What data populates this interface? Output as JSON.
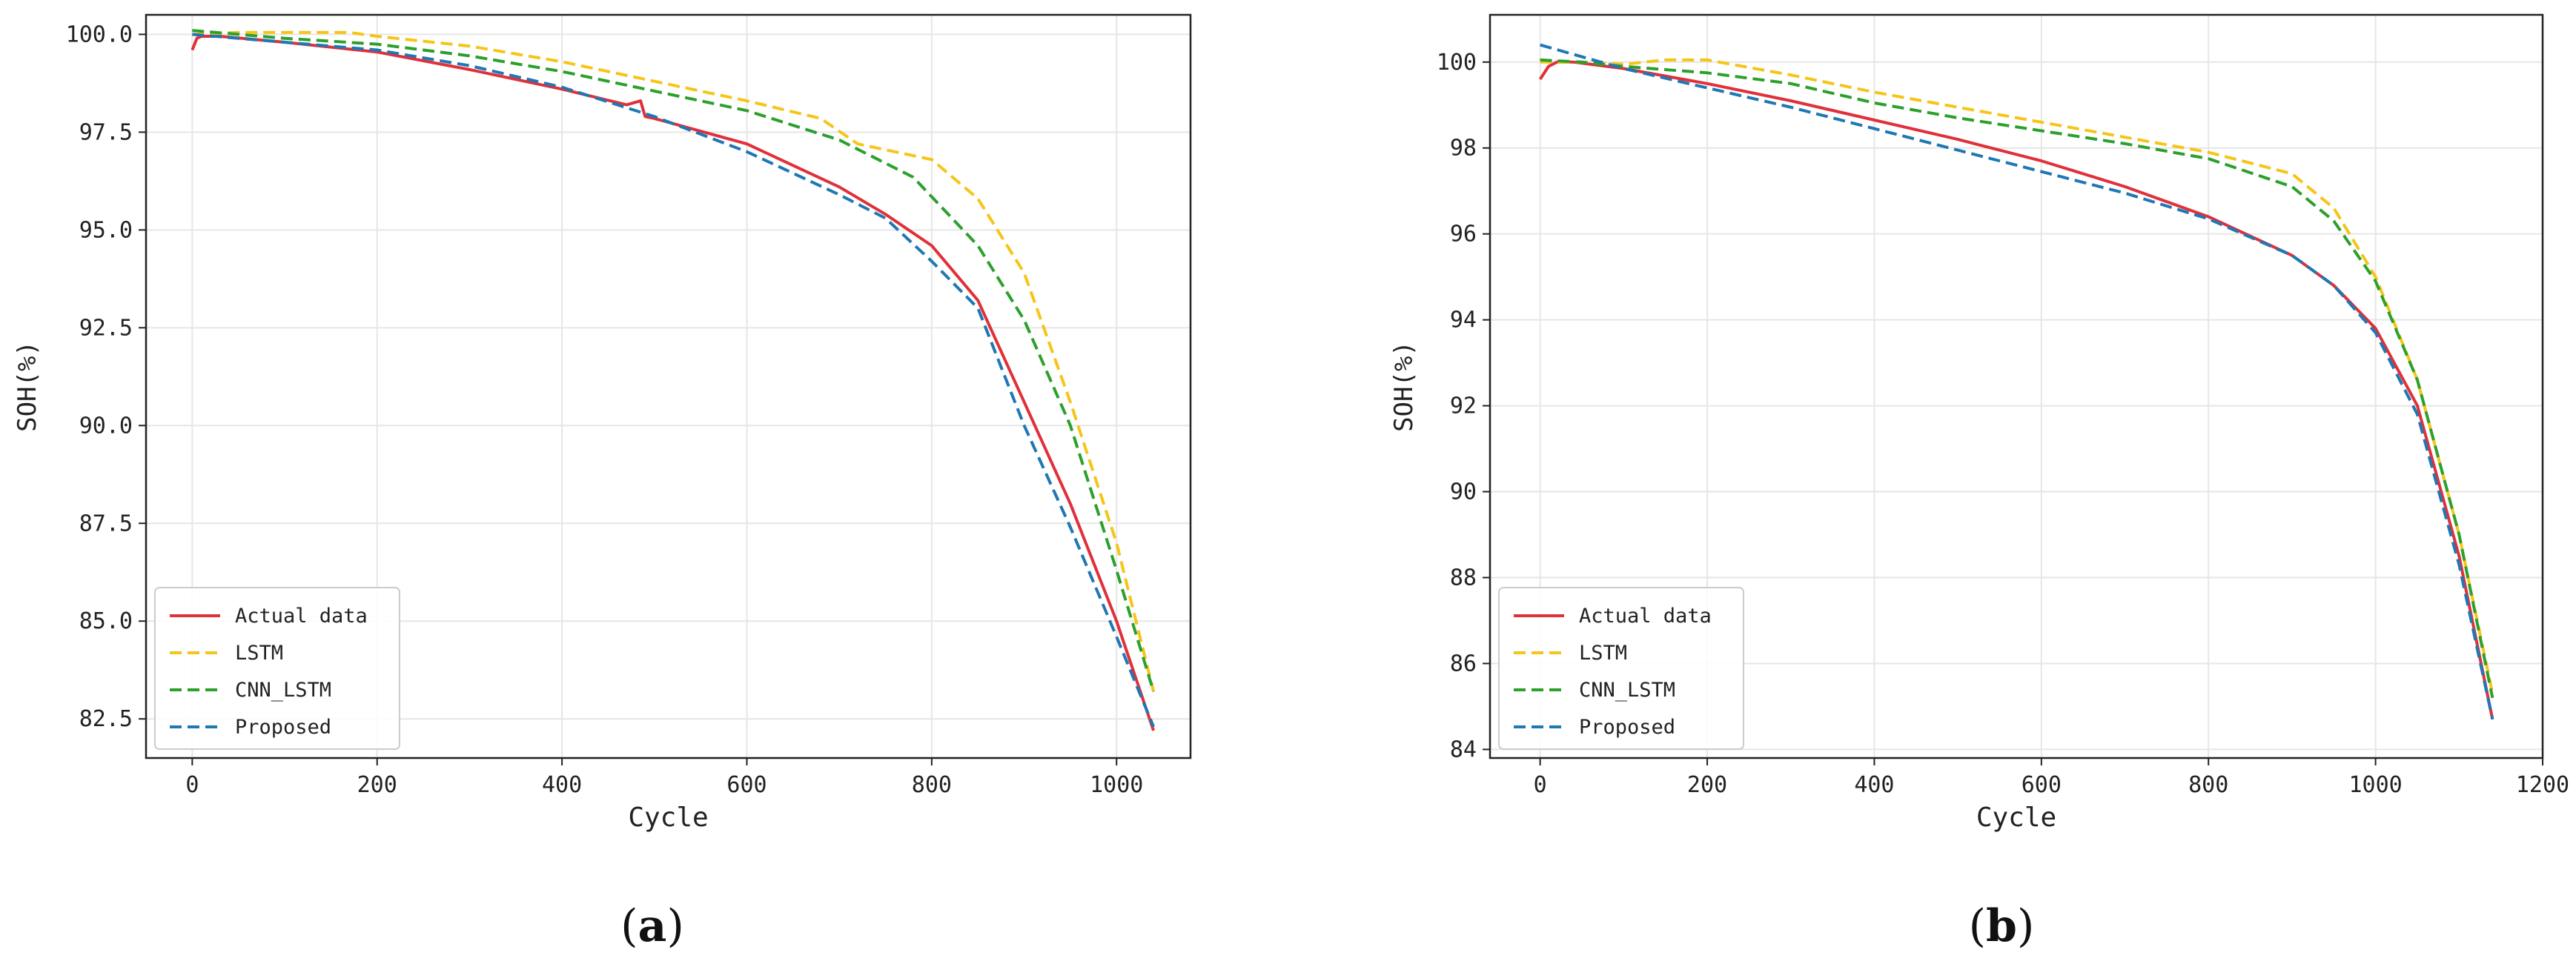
{
  "chart_data": [
    {
      "type": "line",
      "panel_label": "a",
      "xlabel": "Cycle",
      "ylabel": "SOH(%)",
      "xlim": [
        -50,
        1080
      ],
      "ylim": [
        81.5,
        100.5
      ],
      "x_ticks": [
        0,
        200,
        400,
        600,
        800,
        1000
      ],
      "x_tick_labels": [
        "0",
        "200",
        "400",
        "600",
        "800",
        "1000"
      ],
      "y_ticks": [
        82.5,
        85.0,
        87.5,
        90.0,
        92.5,
        95.0,
        97.5,
        100.0
      ],
      "y_tick_labels": [
        "82.5",
        "85.0",
        "87.5",
        "90.0",
        "92.5",
        "95.0",
        "97.5",
        "100.0"
      ],
      "grid": true,
      "legend_position": "lower-left",
      "series": [
        {
          "name": "Actual data",
          "color": "#e0303a",
          "dash": "solid",
          "x": [
            0,
            5,
            10,
            30,
            100,
            200,
            300,
            400,
            470,
            485,
            490,
            500,
            600,
            700,
            750,
            800,
            850,
            900,
            950,
            1000,
            1040
          ],
          "y": [
            99.6,
            99.9,
            99.95,
            99.95,
            99.8,
            99.55,
            99.1,
            98.6,
            98.2,
            98.3,
            97.9,
            97.85,
            97.2,
            96.1,
            95.4,
            94.6,
            93.2,
            90.6,
            88.0,
            85.0,
            82.2
          ]
        },
        {
          "name": "LSTM",
          "color": "#f5c518",
          "dash": "dashed",
          "x": [
            0,
            50,
            100,
            170,
            200,
            300,
            400,
            500,
            600,
            680,
            720,
            760,
            800,
            850,
            900,
            950,
            1000,
            1040
          ],
          "y": [
            100.0,
            100.05,
            100.05,
            100.05,
            99.95,
            99.7,
            99.3,
            98.8,
            98.3,
            97.85,
            97.2,
            97.0,
            96.8,
            95.8,
            93.9,
            90.6,
            87.0,
            83.2
          ]
        },
        {
          "name": "CNN_LSTM",
          "color": "#2ca02c",
          "dash": "dashed",
          "x": [
            0,
            100,
            200,
            300,
            400,
            500,
            600,
            700,
            780,
            850,
            900,
            950,
            1000,
            1040
          ],
          "y": [
            100.1,
            99.9,
            99.75,
            99.45,
            99.05,
            98.55,
            98.05,
            97.3,
            96.35,
            94.6,
            92.7,
            90.0,
            86.3,
            83.2
          ]
        },
        {
          "name": "Proposed",
          "color": "#1f77b4",
          "dash": "dashed",
          "x": [
            0,
            50,
            100,
            200,
            300,
            400,
            500,
            600,
            700,
            750,
            800,
            850,
            900,
            950,
            1000,
            1040
          ],
          "y": [
            100.0,
            99.9,
            99.8,
            99.6,
            99.2,
            98.65,
            97.9,
            97.0,
            95.9,
            95.3,
            94.2,
            93.0,
            90.0,
            87.4,
            84.6,
            82.3
          ]
        }
      ]
    },
    {
      "type": "line",
      "panel_label": "b",
      "xlabel": "Cycle",
      "ylabel": "SOH(%)",
      "xlim": [
        -60,
        1200
      ],
      "ylim": [
        83.8,
        101.1
      ],
      "x_ticks": [
        0,
        200,
        400,
        600,
        800,
        1000,
        1200
      ],
      "x_tick_labels": [
        "0",
        "200",
        "400",
        "600",
        "800",
        "1000",
        "1200"
      ],
      "y_ticks": [
        84,
        86,
        88,
        90,
        92,
        94,
        96,
        98,
        100
      ],
      "y_tick_labels": [
        "84",
        "86",
        "88",
        "90",
        "92",
        "94",
        "96",
        "98",
        "100"
      ],
      "grid": true,
      "legend_position": "lower-left",
      "series": [
        {
          "name": "Actual data",
          "color": "#e0303a",
          "dash": "solid",
          "x": [
            0,
            10,
            20,
            40,
            100,
            200,
            300,
            400,
            500,
            600,
            700,
            800,
            900,
            950,
            1000,
            1050,
            1100,
            1140
          ],
          "y": [
            99.6,
            99.9,
            100.0,
            100.0,
            99.85,
            99.5,
            99.1,
            98.65,
            98.2,
            97.7,
            97.1,
            96.4,
            95.5,
            94.8,
            93.8,
            92.0,
            88.5,
            84.7
          ]
        },
        {
          "name": "LSTM",
          "color": "#f5c518",
          "dash": "dashed",
          "x": [
            0,
            50,
            100,
            150,
            200,
            300,
            400,
            500,
            600,
            700,
            800,
            900,
            950,
            1000,
            1050,
            1100,
            1140
          ],
          "y": [
            100.0,
            100.0,
            99.95,
            100.05,
            100.05,
            99.7,
            99.3,
            98.95,
            98.6,
            98.25,
            97.9,
            97.4,
            96.6,
            95.0,
            92.6,
            89.0,
            85.3
          ]
        },
        {
          "name": "CNN_LSTM",
          "color": "#2ca02c",
          "dash": "dashed",
          "x": [
            0,
            50,
            100,
            200,
            300,
            400,
            500,
            600,
            700,
            800,
            900,
            950,
            1000,
            1050,
            1100,
            1140
          ],
          "y": [
            100.05,
            100.0,
            99.9,
            99.75,
            99.5,
            99.05,
            98.7,
            98.4,
            98.1,
            97.75,
            97.1,
            96.3,
            94.9,
            92.6,
            89.0,
            85.2
          ]
        },
        {
          "name": "Proposed",
          "color": "#1f77b4",
          "dash": "dashed",
          "x": [
            0,
            100,
            200,
            300,
            400,
            500,
            600,
            700,
            800,
            900,
            950,
            1000,
            1050,
            1100,
            1140
          ],
          "y": [
            100.4,
            99.85,
            99.4,
            98.95,
            98.45,
            97.95,
            97.45,
            96.95,
            96.35,
            95.5,
            94.8,
            93.7,
            91.8,
            88.3,
            84.7
          ]
        }
      ]
    }
  ]
}
